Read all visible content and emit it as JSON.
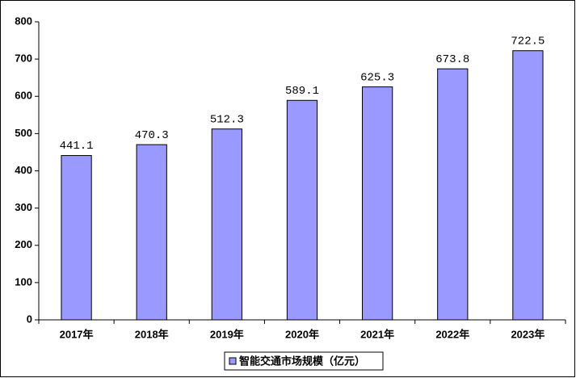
{
  "chart_data": {
    "type": "bar",
    "categories": [
      "2017年",
      "2018年",
      "2019年",
      "2020年",
      "2021年",
      "2022年",
      "2023年"
    ],
    "series": [
      {
        "name": "智能交通市场规模（亿元）",
        "color": "#9999ff",
        "values": [
          441.1,
          470.3,
          512.3,
          589.1,
          625.3,
          673.8,
          722.5
        ]
      }
    ],
    "ylim": [
      0,
      800
    ],
    "yticks": [
      0,
      100,
      200,
      300,
      400,
      500,
      600,
      700,
      800
    ],
    "legend": "bottom"
  }
}
